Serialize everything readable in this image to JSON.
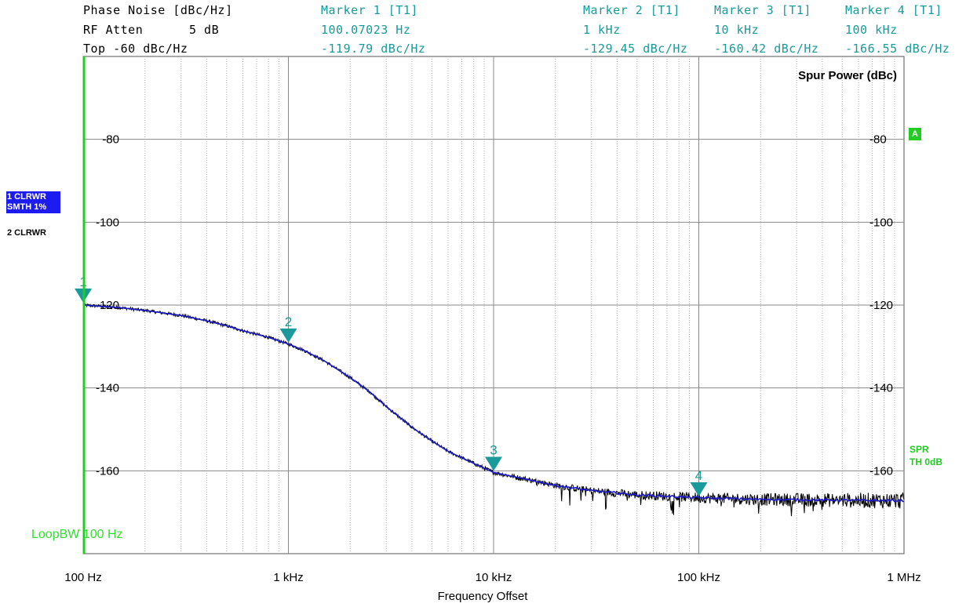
{
  "header": {
    "row1": {
      "label": "Phase Noise [dBc/Hz]",
      "markers": [
        "Marker 1 [T1]",
        "Marker 2 [T1]",
        "Marker 3 [T1]",
        "Marker 4 [T1]"
      ]
    },
    "row2": {
      "label": "RF Atten",
      "value": "5 dB",
      "markers": [
        "100.07023 Hz",
        "1 kHz",
        "10 kHz",
        "100 kHz"
      ]
    },
    "row3": {
      "label": "Top -60 dBc/Hz",
      "markers": [
        "-119.79 dBc/Hz",
        "-129.45 dBc/Hz",
        "-160.42 dBc/Hz",
        "-166.55 dBc/Hz"
      ]
    }
  },
  "side": {
    "trace1_line1": "1 CLRWR",
    "trace1_line2": "SMTH 1%",
    "trace2": "2 CLRWR",
    "a_badge": "A",
    "spr_line1": "SPR",
    "spr_line2": "TH 0dB",
    "loop_bw": "LoopBW 100 Hz"
  },
  "colors": {
    "trace_smoothed": "#1a1acc",
    "trace_raw": "#000000",
    "marker": "#1a9a9a",
    "limit_line": "#22cc22",
    "grid_major": "#888888",
    "grid_minor": "#aaaaaa"
  },
  "chart_data": {
    "type": "line",
    "title": "",
    "xlabel": "Frequency Offset",
    "ylabel": "Spur Power (dBc)",
    "x_scale": "log",
    "xlim": [
      100,
      1000000
    ],
    "ylim": [
      -180,
      -60
    ],
    "x_ticks": [
      100,
      1000,
      10000,
      100000,
      1000000
    ],
    "x_tick_labels": [
      "100 Hz",
      "1 kHz",
      "10 kHz",
      "100 kHz",
      "1 MHz"
    ],
    "y_ticks": [
      -80,
      -100,
      -120,
      -140,
      -160
    ],
    "y_tick_labels": [
      "-80",
      "-100",
      "-120",
      "-140",
      "-160"
    ],
    "grid": true,
    "series": [
      {
        "role": "smoothed",
        "x": [
          100,
          150,
          200,
          300,
          400,
          500,
          600,
          800,
          1000,
          1200,
          1500,
          2000,
          2500,
          3000,
          4000,
          5000,
          6000,
          8000,
          10000,
          15000,
          20000,
          30000,
          50000,
          100000,
          200000,
          500000,
          1000000
        ],
        "y": [
          -120,
          -120.6,
          -121.3,
          -122.5,
          -123.8,
          -125,
          -126.2,
          -127.8,
          -129.4,
          -131,
          -133.5,
          -137.5,
          -141,
          -144.5,
          -149.5,
          -152.8,
          -155.3,
          -158.2,
          -160.4,
          -162.2,
          -163.5,
          -164.8,
          -165.8,
          -166.5,
          -166.9,
          -167.1,
          -167.2
        ]
      }
    ],
    "markers": [
      {
        "label": "1",
        "x": 100.07023,
        "y": -119.79
      },
      {
        "label": "2",
        "x": 1000,
        "y": -129.45
      },
      {
        "label": "3",
        "x": 10000,
        "y": -160.42
      },
      {
        "label": "4",
        "x": 100000,
        "y": -166.55
      }
    ]
  }
}
